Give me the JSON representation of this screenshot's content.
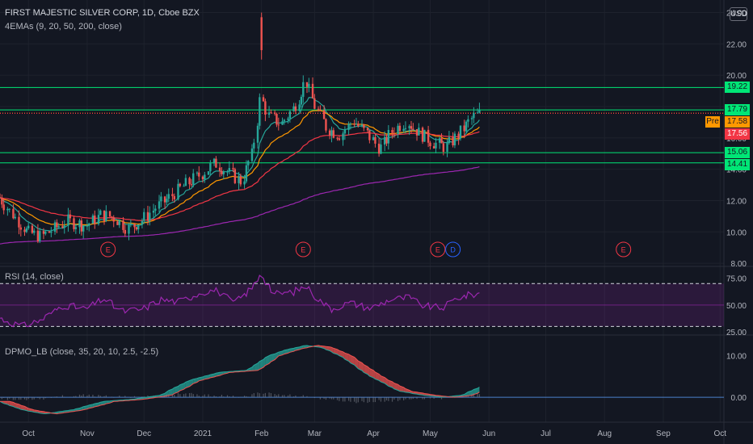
{
  "header": {
    "title": "FIRST MAJESTIC SILVER CORP, 1D, Cboe BZX",
    "indicator": "4EMAs (9, 20, 50, 200, close)",
    "currency": "USD"
  },
  "price_tags": [
    {
      "label": "19.22",
      "value": 19.22,
      "color": "#00e676"
    },
    {
      "label": "17.79",
      "value": 17.79,
      "color": "#00e676"
    },
    {
      "label": "17.58",
      "value": 17.58,
      "color": "#ff9800",
      "pre": "Pre"
    },
    {
      "label": "17.56",
      "value": 17.56,
      "color": "#f23645"
    },
    {
      "label": "15.06",
      "value": 15.06,
      "color": "#00e676"
    },
    {
      "label": "14.41",
      "value": 14.41,
      "color": "#00e676"
    }
  ],
  "rsi_panel": {
    "label": "RSI (14, close)"
  },
  "dpmo_panel": {
    "label": "DPMO_LB (close, 35, 20, 10, 2.5, -2.5)"
  },
  "events": [
    {
      "label": "E",
      "date": "2020-11-12",
      "color": "#f23645"
    },
    {
      "label": "E",
      "date": "2021-02-23",
      "color": "#f23645"
    },
    {
      "label": "E",
      "date": "2021-05-05",
      "color": "#f23645"
    },
    {
      "label": "D",
      "date": "2021-05-13",
      "color": "#2962ff"
    },
    {
      "label": "E",
      "date": "2021-08-11",
      "color": "#f23645"
    }
  ],
  "chart_data": [
    {
      "type": "candlestick",
      "panel": "price",
      "yticks": [
        8,
        10,
        12,
        14,
        16,
        18,
        20,
        22,
        24
      ],
      "ytick_labels": [
        "8.00",
        "10.00",
        "12.00",
        "14.00",
        "16.00",
        "18.00",
        "20.00",
        "22.00",
        "24.00"
      ],
      "ylim": [
        7.8,
        24.8
      ],
      "x_labels": [
        "Oct",
        "Nov",
        "Dec",
        "2021",
        "Feb",
        "Mar",
        "Apr",
        "May",
        "Jun",
        "Jul",
        "Aug",
        "Sep",
        "Oct"
      ],
      "x_label_dates": [
        "2020-10-01",
        "2020-11-01",
        "2020-12-01",
        "2021-01-01",
        "2021-02-01",
        "2021-03-01",
        "2021-04-01",
        "2021-05-01",
        "2021-06-01",
        "2021-07-01",
        "2021-08-01",
        "2021-09-01",
        "2021-10-01"
      ],
      "xlim": [
        "2020-09-16",
        "2021-10-03"
      ],
      "horizontal_levels": [
        19.22,
        17.79,
        15.06,
        14.41
      ],
      "last_price": 17.56,
      "premarket_price": 17.58,
      "ema_colors": {
        "ema9": "#26a69a",
        "ema20": "#ff9800",
        "ema50": "#f23645",
        "ema200": "#9c27b0"
      },
      "close_path": [
        [
          "2020-09-16",
          12.2
        ],
        [
          "2020-09-24",
          11.0
        ],
        [
          "2020-10-01",
          10.0
        ],
        [
          "2020-10-08",
          9.7
        ],
        [
          "2020-10-15",
          10.2
        ],
        [
          "2020-10-22",
          10.7
        ],
        [
          "2020-11-01",
          10.4
        ],
        [
          "2020-11-09",
          11.1
        ],
        [
          "2020-11-16",
          10.9
        ],
        [
          "2020-11-23",
          10.2
        ],
        [
          "2020-12-01",
          10.8
        ],
        [
          "2020-12-08",
          11.6
        ],
        [
          "2020-12-15",
          12.2
        ],
        [
          "2020-12-22",
          12.9
        ],
        [
          "2021-01-01",
          13.7
        ],
        [
          "2021-01-08",
          14.4
        ],
        [
          "2021-01-15",
          13.8
        ],
        [
          "2021-01-22",
          13.2
        ],
        [
          "2021-01-28",
          15.1
        ],
        [
          "2021-02-01",
          18.6
        ],
        [
          "2021-02-05",
          17.4
        ],
        [
          "2021-02-12",
          16.9
        ],
        [
          "2021-02-19",
          18.0
        ],
        [
          "2021-02-25",
          19.7
        ],
        [
          "2021-03-01",
          18.2
        ],
        [
          "2021-03-08",
          16.6
        ],
        [
          "2021-03-15",
          16.2
        ],
        [
          "2021-03-22",
          17.1
        ],
        [
          "2021-03-29",
          16.3
        ],
        [
          "2021-04-05",
          15.3
        ],
        [
          "2021-04-12",
          16.5
        ],
        [
          "2021-04-19",
          17.1
        ],
        [
          "2021-04-26",
          16.3
        ],
        [
          "2021-05-03",
          15.7
        ],
        [
          "2021-05-10",
          15.4
        ],
        [
          "2021-05-17",
          16.3
        ],
        [
          "2021-05-24",
          17.3
        ],
        [
          "2021-05-28",
          17.56
        ]
      ],
      "spike": {
        "date": "2021-02-01",
        "high": 24.0,
        "low": 21.0
      }
    },
    {
      "type": "line",
      "panel": "rsi",
      "yticks": [
        25,
        50,
        75
      ],
      "ytick_labels": [
        "25.00",
        "50.00",
        "75.00"
      ],
      "ylim": [
        22,
        86
      ],
      "bands": [
        30,
        70
      ],
      "points": [
        [
          "2020-09-16",
          38
        ],
        [
          "2020-09-28",
          30
        ],
        [
          "2020-10-08",
          36
        ],
        [
          "2020-10-20",
          50
        ],
        [
          "2020-11-01",
          46
        ],
        [
          "2020-11-10",
          56
        ],
        [
          "2020-11-20",
          44
        ],
        [
          "2020-12-01",
          46
        ],
        [
          "2020-12-10",
          55
        ],
        [
          "2020-12-20",
          53
        ],
        [
          "2021-01-01",
          62
        ],
        [
          "2021-01-08",
          64
        ],
        [
          "2021-01-18",
          52
        ],
        [
          "2021-01-28",
          66
        ],
        [
          "2021-02-01",
          80
        ],
        [
          "2021-02-08",
          60
        ],
        [
          "2021-02-18",
          62
        ],
        [
          "2021-02-25",
          68
        ],
        [
          "2021-03-03",
          56
        ],
        [
          "2021-03-10",
          46
        ],
        [
          "2021-03-20",
          52
        ],
        [
          "2021-03-31",
          47
        ],
        [
          "2021-04-10",
          55
        ],
        [
          "2021-04-20",
          57
        ],
        [
          "2021-04-28",
          49
        ],
        [
          "2021-05-08",
          47
        ],
        [
          "2021-05-16",
          57
        ],
        [
          "2021-05-28",
          61
        ]
      ]
    },
    {
      "type": "area",
      "panel": "dpmo",
      "yticks": [
        0,
        10
      ],
      "ytick_labels": [
        "0.00",
        "10.00"
      ],
      "ylim": [
        -6,
        15
      ],
      "signal_level": 0,
      "points": [
        [
          "2020-09-16",
          -1.0
        ],
        [
          "2020-09-28",
          -3.0
        ],
        [
          "2020-10-10",
          -4.0
        ],
        [
          "2020-10-25",
          -3.0
        ],
        [
          "2020-11-10",
          -1.0
        ],
        [
          "2020-11-25",
          -0.5
        ],
        [
          "2020-12-10",
          0.5
        ],
        [
          "2020-12-25",
          4.0
        ],
        [
          "2021-01-10",
          6.0
        ],
        [
          "2021-01-25",
          6.5
        ],
        [
          "2021-02-05",
          10.0
        ],
        [
          "2021-02-15",
          11.5
        ],
        [
          "2021-02-25",
          12.5
        ],
        [
          "2021-03-05",
          12.0
        ],
        [
          "2021-03-15",
          10.0
        ],
        [
          "2021-03-31",
          5.0
        ],
        [
          "2021-04-15",
          1.5
        ],
        [
          "2021-04-28",
          0.5
        ],
        [
          "2021-05-08",
          0.0
        ],
        [
          "2021-05-18",
          0.5
        ],
        [
          "2021-05-28",
          2.5
        ]
      ]
    }
  ]
}
